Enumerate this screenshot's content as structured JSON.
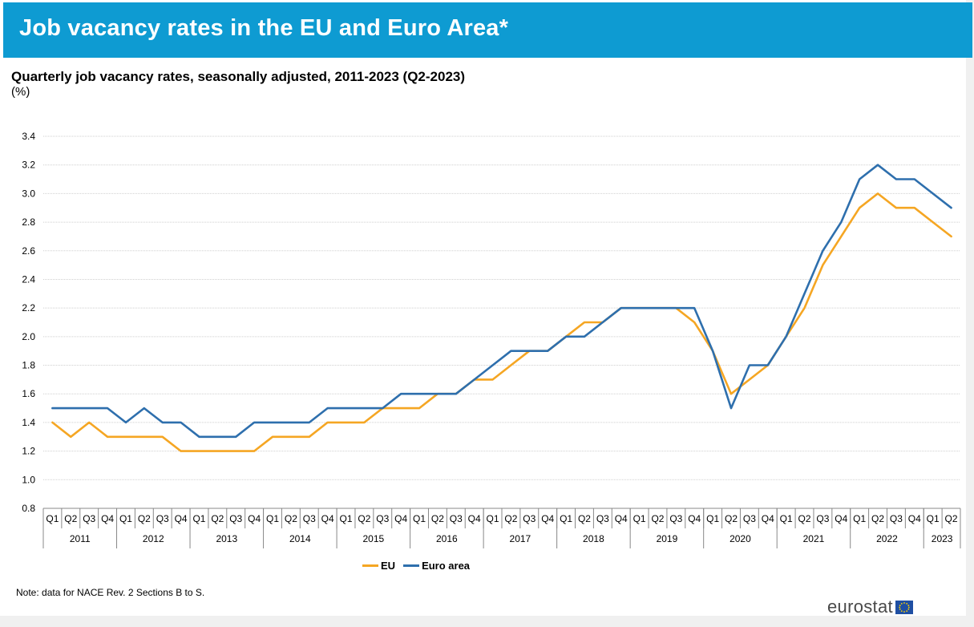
{
  "header": {
    "title": "Job vacancy rates in the EU and Euro Area*"
  },
  "subtitle": "Quarterly job vacancy rates, seasonally adjusted, 2011-2023 (Q2-2023)",
  "unit": "(%)",
  "note": "Note: data for NACE Rev. 2 Sections B to S.",
  "logo": {
    "text": "eurostat"
  },
  "colors": {
    "banner": "#0e9bd2",
    "eu": "#f5a623",
    "euro_area": "#2e6fad"
  },
  "chart_data": {
    "type": "line",
    "ylim": [
      0.8,
      3.4
    ],
    "yticks": [
      "0.8",
      "1.0",
      "1.2",
      "1.4",
      "1.6",
      "1.8",
      "2.0",
      "2.2",
      "2.4",
      "2.6",
      "2.8",
      "3.0",
      "3.2",
      "3.4"
    ],
    "grid": true,
    "legend_position": "bottom-center",
    "quarters": [
      "Q1",
      "Q2",
      "Q3",
      "Q4",
      "Q1",
      "Q2",
      "Q3",
      "Q4",
      "Q1",
      "Q2",
      "Q3",
      "Q4",
      "Q1",
      "Q2",
      "Q3",
      "Q4",
      "Q1",
      "Q2",
      "Q3",
      "Q4",
      "Q1",
      "Q2",
      "Q3",
      "Q4",
      "Q1",
      "Q2",
      "Q3",
      "Q4",
      "Q1",
      "Q2",
      "Q3",
      "Q4",
      "Q1",
      "Q2",
      "Q3",
      "Q4",
      "Q1",
      "Q2",
      "Q3",
      "Q4",
      "Q1",
      "Q2",
      "Q3",
      "Q4",
      "Q1",
      "Q2",
      "Q3",
      "Q4",
      "Q1",
      "Q2"
    ],
    "years": [
      {
        "label": "2011",
        "quarters": 4
      },
      {
        "label": "2012",
        "quarters": 4
      },
      {
        "label": "2013",
        "quarters": 4
      },
      {
        "label": "2014",
        "quarters": 4
      },
      {
        "label": "2015",
        "quarters": 4
      },
      {
        "label": "2016",
        "quarters": 4
      },
      {
        "label": "2017",
        "quarters": 4
      },
      {
        "label": "2018",
        "quarters": 4
      },
      {
        "label": "2019",
        "quarters": 4
      },
      {
        "label": "2020",
        "quarters": 4
      },
      {
        "label": "2021",
        "quarters": 4
      },
      {
        "label": "2022",
        "quarters": 4
      },
      {
        "label": "2023",
        "quarters": 2
      }
    ],
    "series": [
      {
        "name": "EU",
        "color": "#f5a623",
        "values": [
          1.4,
          1.3,
          1.4,
          1.3,
          1.3,
          1.3,
          1.3,
          1.2,
          1.2,
          1.2,
          1.2,
          1.2,
          1.3,
          1.3,
          1.3,
          1.4,
          1.4,
          1.4,
          1.5,
          1.5,
          1.5,
          1.6,
          1.6,
          1.7,
          1.7,
          1.8,
          1.9,
          1.9,
          2.0,
          2.1,
          2.1,
          2.2,
          2.2,
          2.2,
          2.2,
          2.1,
          1.9,
          1.6,
          1.7,
          1.8,
          2.0,
          2.2,
          2.5,
          2.7,
          2.9,
          3.0,
          2.9,
          2.9,
          2.8,
          2.7
        ]
      },
      {
        "name": "Euro area",
        "color": "#2e6fad",
        "values": [
          1.5,
          1.5,
          1.5,
          1.5,
          1.4,
          1.5,
          1.4,
          1.4,
          1.3,
          1.3,
          1.3,
          1.4,
          1.4,
          1.4,
          1.4,
          1.5,
          1.5,
          1.5,
          1.5,
          1.6,
          1.6,
          1.6,
          1.6,
          1.7,
          1.8,
          1.9,
          1.9,
          1.9,
          2.0,
          2.0,
          2.1,
          2.2,
          2.2,
          2.2,
          2.2,
          2.2,
          1.9,
          1.5,
          1.8,
          1.8,
          2.0,
          2.3,
          2.6,
          2.8,
          3.1,
          3.2,
          3.1,
          3.1,
          3.0,
          2.9
        ]
      }
    ]
  }
}
